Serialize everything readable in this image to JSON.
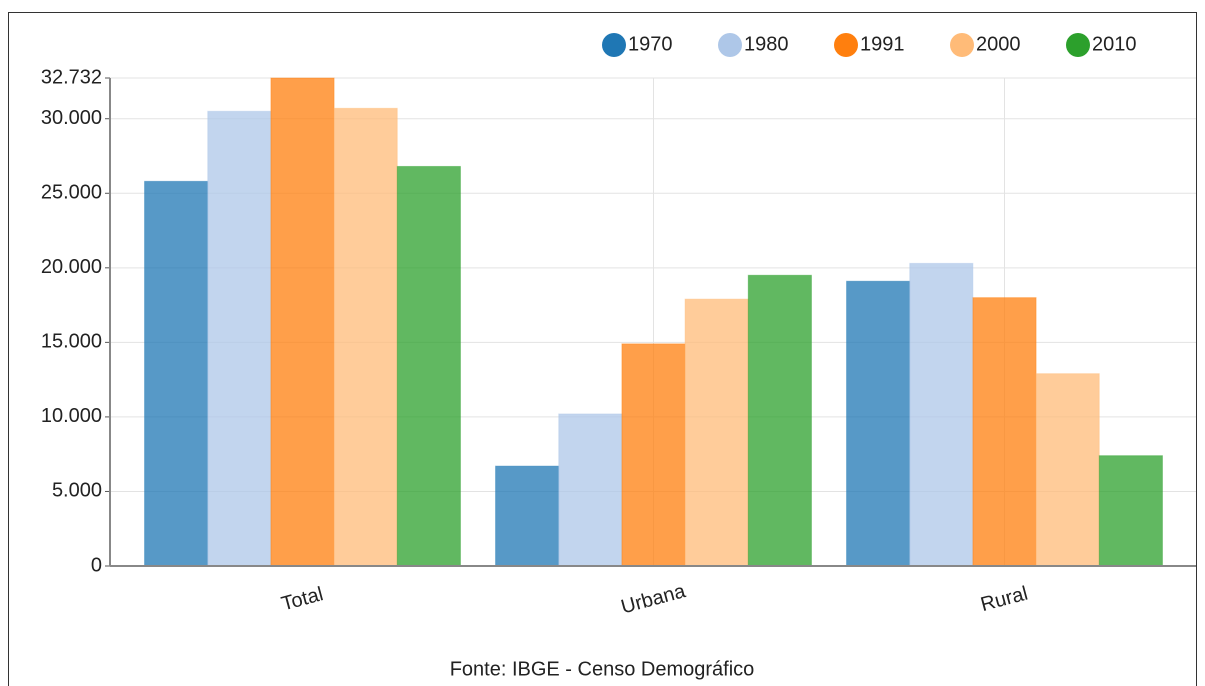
{
  "chart_data": {
    "type": "bar",
    "categories": [
      "Total",
      "Urbana",
      "Rural"
    ],
    "series": [
      {
        "name": "1970",
        "color": "#1f77b4",
        "values": [
          25800,
          6700,
          19100
        ]
      },
      {
        "name": "1980",
        "color": "#aec7e8",
        "values": [
          30500,
          10200,
          20300
        ]
      },
      {
        "name": "1991",
        "color": "#ff7f0e",
        "values": [
          32732,
          14900,
          18000
        ]
      },
      {
        "name": "2000",
        "color": "#ffbb78",
        "values": [
          30700,
          17900,
          12900
        ]
      },
      {
        "name": "2010",
        "color": "#2ca02c",
        "values": [
          26800,
          19500,
          7400
        ]
      }
    ],
    "ylim": [
      0,
      32732
    ],
    "yticks": [
      0,
      {
        "value": 5000,
        "label": "5.000"
      },
      {
        "value": 10000,
        "label": "10.000"
      },
      {
        "value": 15000,
        "label": "15.000"
      },
      {
        "value": 20000,
        "label": "20.000"
      },
      {
        "value": 25000,
        "label": "25.000"
      },
      {
        "value": 30000,
        "label": "30.000"
      },
      {
        "value": 32732,
        "label": "32.732"
      }
    ],
    "grid": true,
    "legend": "top-right",
    "source": "Fonte: IBGE - Censo Demográfico"
  }
}
